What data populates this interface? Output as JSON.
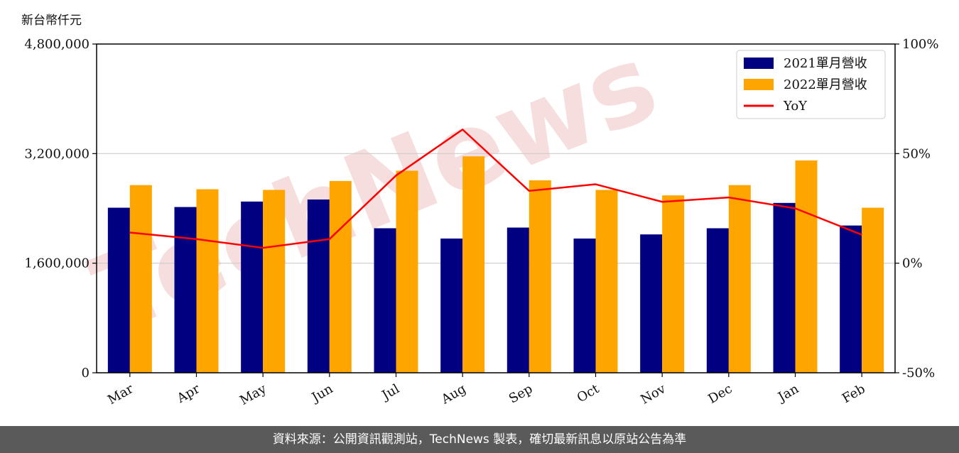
{
  "unit_label": "新台幣仟元",
  "footer_text": "資料來源：公開資訊觀測站，TechNews 製表，確切最新訊息以原站公告為準",
  "watermark_text": "TechNews",
  "colors": {
    "series_2021": "#000080",
    "series_2022": "#FFA500",
    "yoy": "#FF0000",
    "grid": "#cccccc",
    "watermark": "#f2c4c4"
  },
  "chart_data": {
    "type": "bar",
    "categories": [
      "Mar",
      "Apr",
      "May",
      "Jun",
      "Jul",
      "Aug",
      "Sep",
      "Oct",
      "Nov",
      "Dec",
      "Jan",
      "Feb"
    ],
    "series": [
      {
        "name": "2021單月營收",
        "type": "bar",
        "axis": "left",
        "values": [
          2410000,
          2420000,
          2500000,
          2530000,
          2110000,
          1960000,
          2120000,
          1960000,
          2020000,
          2110000,
          2480000,
          2150000
        ]
      },
      {
        "name": "2022單月營收",
        "type": "bar",
        "axis": "left",
        "values": [
          2740000,
          2680000,
          2670000,
          2800000,
          2950000,
          3160000,
          2810000,
          2670000,
          2590000,
          2740000,
          3100000,
          2410000
        ]
      },
      {
        "name": "YoY",
        "type": "line",
        "axis": "right",
        "values": [
          14,
          11,
          7,
          11,
          40,
          61,
          33,
          36,
          28,
          30,
          25,
          13
        ]
      }
    ],
    "ylim": [
      0,
      4800000
    ],
    "yticks": [
      "0",
      "1,600,000",
      "3,200,000",
      "4,800,000"
    ],
    "ytick_values": [
      0,
      1600000,
      3200000,
      4800000
    ],
    "y2lim": [
      -50,
      100
    ],
    "y2ticks": [
      "-50%",
      "0%",
      "50%",
      "100%"
    ],
    "y2tick_values": [
      -50,
      0,
      50,
      100
    ],
    "grid": "horizontal",
    "legend_position": "top-right"
  }
}
